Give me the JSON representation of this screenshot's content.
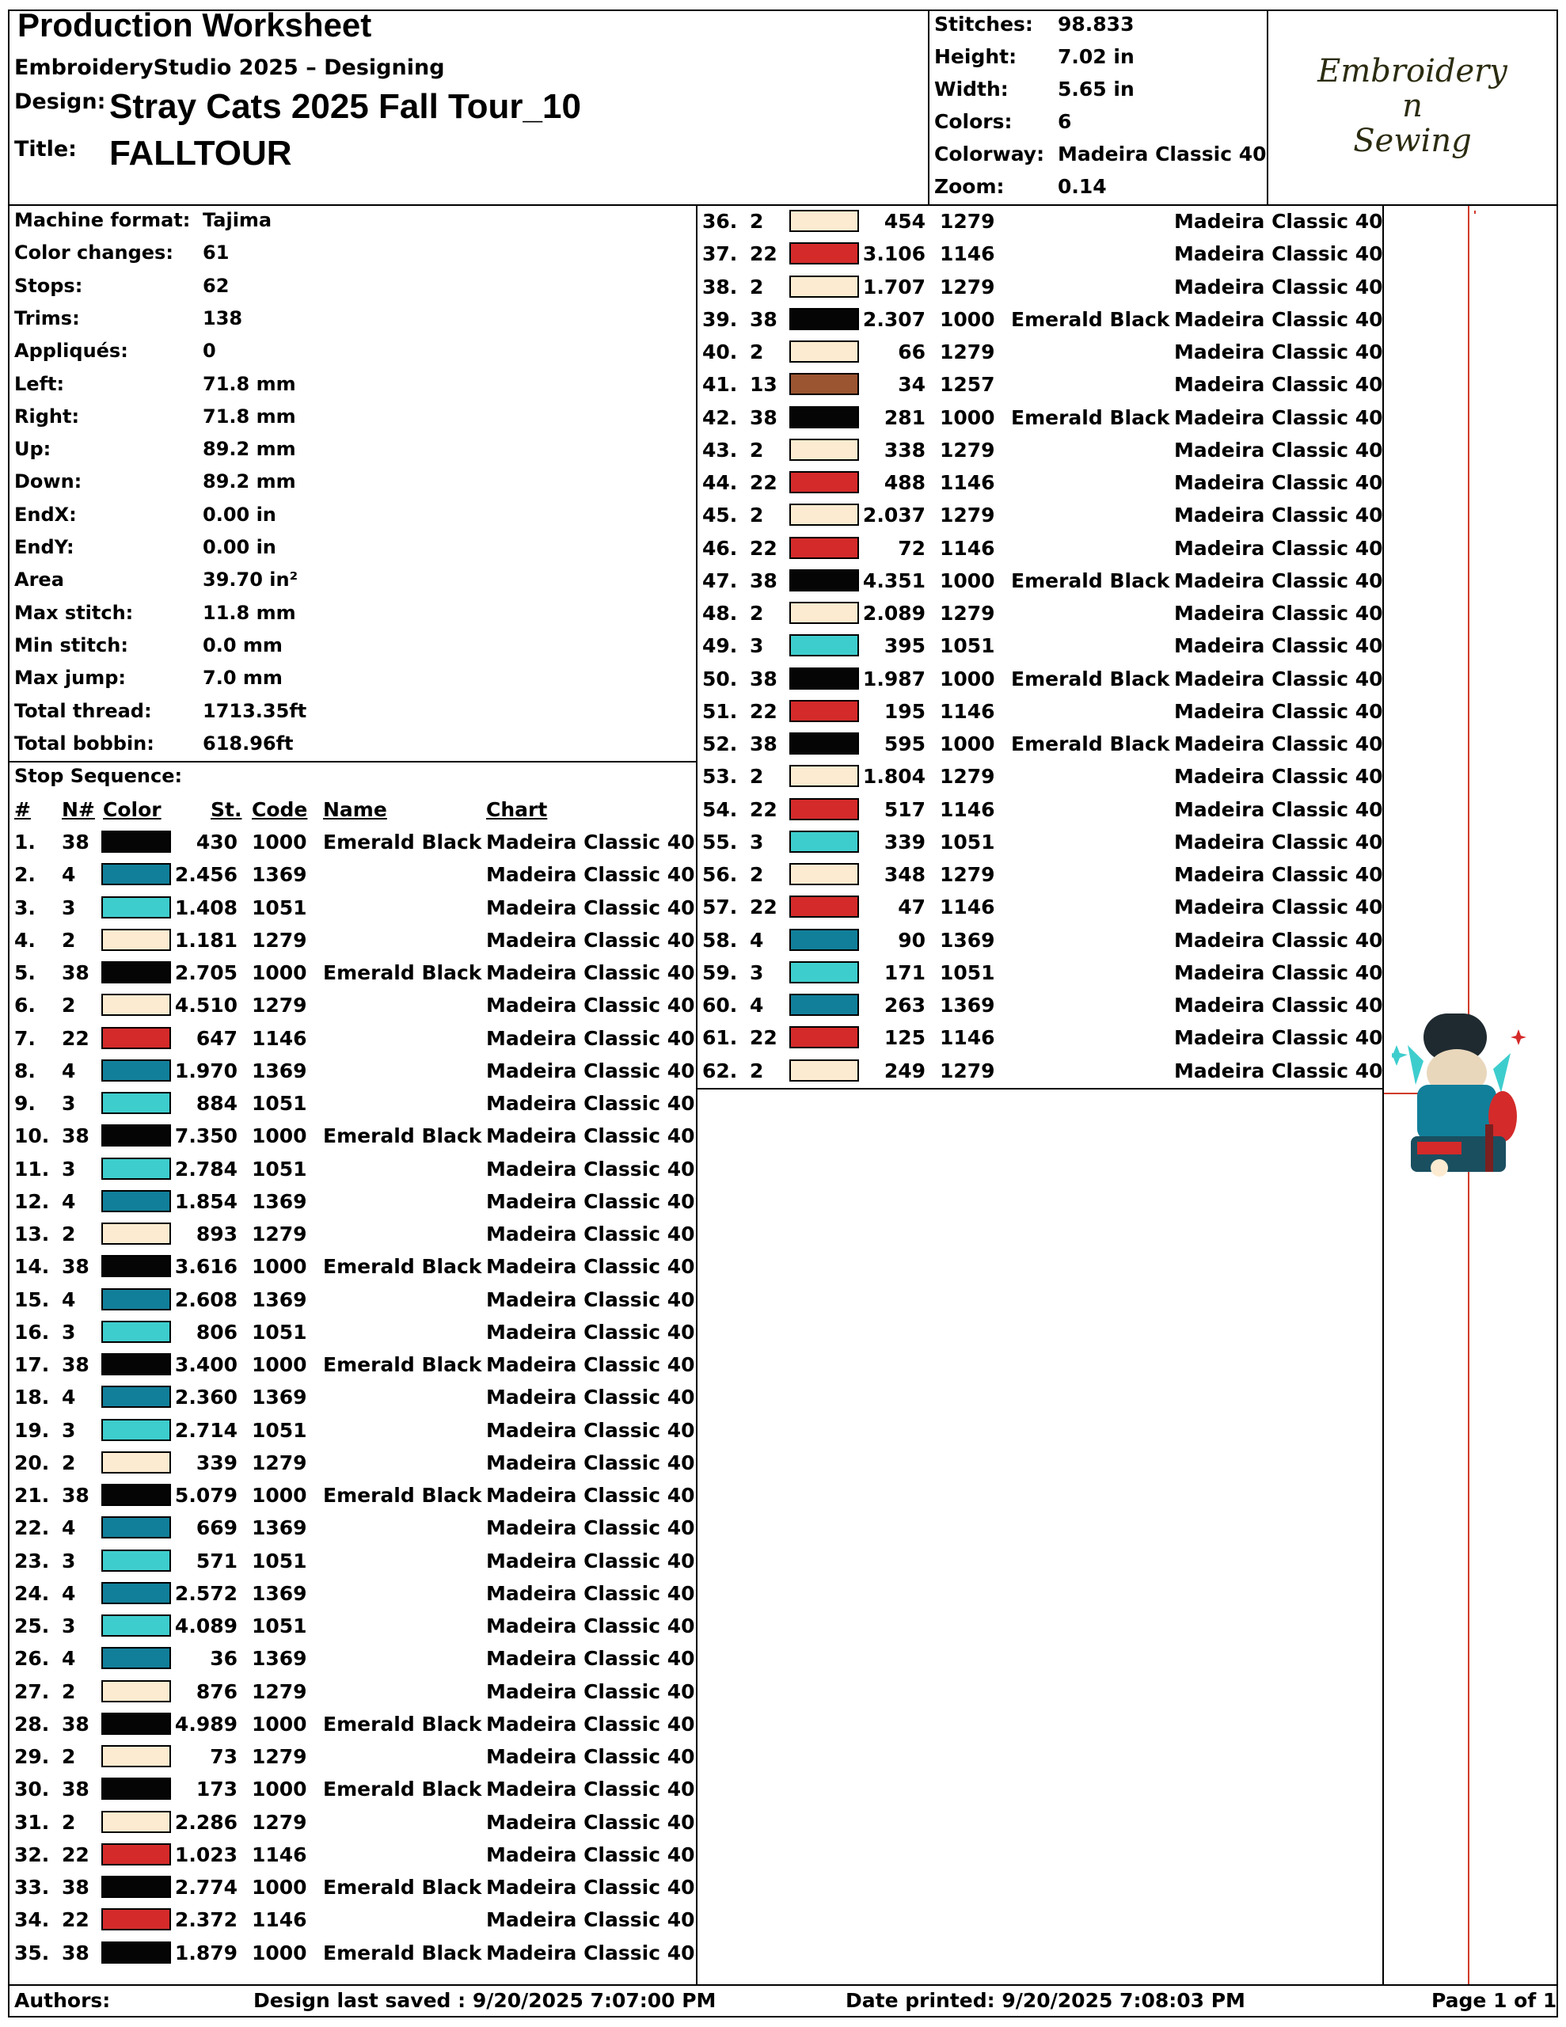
{
  "header": {
    "title": "Production Worksheet",
    "app": "EmbroideryStudio 2025 – Designing",
    "design_label": "Design:",
    "design": "Stray Cats 2025 Fall Tour_10",
    "title_label": "Title:",
    "design_title": "FALLTOUR"
  },
  "summary": [
    {
      "label": "Stitches:",
      "value": "98.833"
    },
    {
      "label": "Height:",
      "value": "7.02 in"
    },
    {
      "label": "Width:",
      "value": "5.65 in"
    },
    {
      "label": "Colors:",
      "value": "6"
    },
    {
      "label": "Colorway:",
      "value": "Madeira Classic 40"
    },
    {
      "label": "Zoom:",
      "value": "0.14"
    }
  ],
  "logo": {
    "line1": "Embroidery",
    "line2": "n",
    "line3": "Sewing"
  },
  "specs": [
    {
      "label": "Machine format:",
      "value": "Tajima"
    },
    {
      "label": "Color changes:",
      "value": "61"
    },
    {
      "label": "Stops:",
      "value": "62"
    },
    {
      "label": "Trims:",
      "value": "138"
    },
    {
      "label": "Appliqués:",
      "value": "0"
    },
    {
      "label": "Left:",
      "value": "71.8 mm"
    },
    {
      "label": "Right:",
      "value": "71.8 mm"
    },
    {
      "label": "Up:",
      "value": "89.2 mm"
    },
    {
      "label": "Down:",
      "value": "89.2 mm"
    },
    {
      "label": "EndX:",
      "value": "0.00 in"
    },
    {
      "label": "EndY:",
      "value": "0.00 in"
    },
    {
      "label": "Area",
      "value": " 39.70 in²"
    },
    {
      "label": "Max stitch:",
      "value": "11.8 mm"
    },
    {
      "label": "Min stitch:",
      "value": "0.0 mm"
    },
    {
      "label": "Max jump:",
      "value": "7.0 mm"
    },
    {
      "label": "Total thread:",
      "value": "1713.35ft"
    },
    {
      "label": "Total bobbin:",
      "value": "618.96ft"
    }
  ],
  "stop_sequence": {
    "title": "Stop Sequence:",
    "headers": {
      "idx": "#",
      "n": "N#",
      "color": "Color",
      "st": "St.",
      "code": "Code",
      "name": "Name",
      "chart": "Chart"
    }
  },
  "colors": {
    "black": "#050505",
    "teal": "#117f9a",
    "cyan": "#3ecdcd",
    "cream": "#fcebd0",
    "red": "#d42a2a",
    "brown": "#9b5530",
    "rule": "#d23a2a"
  },
  "rows": [
    {
      "i": "1.",
      "n": "38",
      "c": "black",
      "st": "430",
      "code": "1000",
      "name": "Emerald Black",
      "chart": "Madeira Classic 40"
    },
    {
      "i": "2.",
      "n": "4",
      "c": "teal",
      "st": "2.456",
      "code": "1369",
      "name": "",
      "chart": "Madeira Classic 40"
    },
    {
      "i": "3.",
      "n": "3",
      "c": "cyan",
      "st": "1.408",
      "code": "1051",
      "name": "",
      "chart": "Madeira Classic 40"
    },
    {
      "i": "4.",
      "n": "2",
      "c": "cream",
      "st": "1.181",
      "code": "1279",
      "name": "",
      "chart": "Madeira Classic 40"
    },
    {
      "i": "5.",
      "n": "38",
      "c": "black",
      "st": "2.705",
      "code": "1000",
      "name": "Emerald Black",
      "chart": "Madeira Classic 40"
    },
    {
      "i": "6.",
      "n": "2",
      "c": "cream",
      "st": "4.510",
      "code": "1279",
      "name": "",
      "chart": "Madeira Classic 40"
    },
    {
      "i": "7.",
      "n": "22",
      "c": "red",
      "st": "647",
      "code": "1146",
      "name": "",
      "chart": "Madeira Classic 40"
    },
    {
      "i": "8.",
      "n": "4",
      "c": "teal",
      "st": "1.970",
      "code": "1369",
      "name": "",
      "chart": "Madeira Classic 40"
    },
    {
      "i": "9.",
      "n": "3",
      "c": "cyan",
      "st": "884",
      "code": "1051",
      "name": "",
      "chart": "Madeira Classic 40"
    },
    {
      "i": "10.",
      "n": "38",
      "c": "black",
      "st": "7.350",
      "code": "1000",
      "name": "Emerald Black",
      "chart": "Madeira Classic 40"
    },
    {
      "i": "11.",
      "n": "3",
      "c": "cyan",
      "st": "2.784",
      "code": "1051",
      "name": "",
      "chart": "Madeira Classic 40"
    },
    {
      "i": "12.",
      "n": "4",
      "c": "teal",
      "st": "1.854",
      "code": "1369",
      "name": "",
      "chart": "Madeira Classic 40"
    },
    {
      "i": "13.",
      "n": "2",
      "c": "cream",
      "st": "893",
      "code": "1279",
      "name": "",
      "chart": "Madeira Classic 40"
    },
    {
      "i": "14.",
      "n": "38",
      "c": "black",
      "st": "3.616",
      "code": "1000",
      "name": "Emerald Black",
      "chart": "Madeira Classic 40"
    },
    {
      "i": "15.",
      "n": "4",
      "c": "teal",
      "st": "2.608",
      "code": "1369",
      "name": "",
      "chart": "Madeira Classic 40"
    },
    {
      "i": "16.",
      "n": "3",
      "c": "cyan",
      "st": "806",
      "code": "1051",
      "name": "",
      "chart": "Madeira Classic 40"
    },
    {
      "i": "17.",
      "n": "38",
      "c": "black",
      "st": "3.400",
      "code": "1000",
      "name": "Emerald Black",
      "chart": "Madeira Classic 40"
    },
    {
      "i": "18.",
      "n": "4",
      "c": "teal",
      "st": "2.360",
      "code": "1369",
      "name": "",
      "chart": "Madeira Classic 40"
    },
    {
      "i": "19.",
      "n": "3",
      "c": "cyan",
      "st": "2.714",
      "code": "1051",
      "name": "",
      "chart": "Madeira Classic 40"
    },
    {
      "i": "20.",
      "n": "2",
      "c": "cream",
      "st": "339",
      "code": "1279",
      "name": "",
      "chart": "Madeira Classic 40"
    },
    {
      "i": "21.",
      "n": "38",
      "c": "black",
      "st": "5.079",
      "code": "1000",
      "name": "Emerald Black",
      "chart": "Madeira Classic 40"
    },
    {
      "i": "22.",
      "n": "4",
      "c": "teal",
      "st": "669",
      "code": "1369",
      "name": "",
      "chart": "Madeira Classic 40"
    },
    {
      "i": "23.",
      "n": "3",
      "c": "cyan",
      "st": "571",
      "code": "1051",
      "name": "",
      "chart": "Madeira Classic 40"
    },
    {
      "i": "24.",
      "n": "4",
      "c": "teal",
      "st": "2.572",
      "code": "1369",
      "name": "",
      "chart": "Madeira Classic 40"
    },
    {
      "i": "25.",
      "n": "3",
      "c": "cyan",
      "st": "4.089",
      "code": "1051",
      "name": "",
      "chart": "Madeira Classic 40"
    },
    {
      "i": "26.",
      "n": "4",
      "c": "teal",
      "st": "36",
      "code": "1369",
      "name": "",
      "chart": "Madeira Classic 40"
    },
    {
      "i": "27.",
      "n": "2",
      "c": "cream",
      "st": "876",
      "code": "1279",
      "name": "",
      "chart": "Madeira Classic 40"
    },
    {
      "i": "28.",
      "n": "38",
      "c": "black",
      "st": "4.989",
      "code": "1000",
      "name": "Emerald Black",
      "chart": "Madeira Classic 40"
    },
    {
      "i": "29.",
      "n": "2",
      "c": "cream",
      "st": "73",
      "code": "1279",
      "name": "",
      "chart": "Madeira Classic 40"
    },
    {
      "i": "30.",
      "n": "38",
      "c": "black",
      "st": "173",
      "code": "1000",
      "name": "Emerald Black",
      "chart": "Madeira Classic 40"
    },
    {
      "i": "31.",
      "n": "2",
      "c": "cream",
      "st": "2.286",
      "code": "1279",
      "name": "",
      "chart": "Madeira Classic 40"
    },
    {
      "i": "32.",
      "n": "22",
      "c": "red",
      "st": "1.023",
      "code": "1146",
      "name": "",
      "chart": "Madeira Classic 40"
    },
    {
      "i": "33.",
      "n": "38",
      "c": "black",
      "st": "2.774",
      "code": "1000",
      "name": "Emerald Black",
      "chart": "Madeira Classic 40"
    },
    {
      "i": "34.",
      "n": "22",
      "c": "red",
      "st": "2.372",
      "code": "1146",
      "name": "",
      "chart": "Madeira Classic 40"
    },
    {
      "i": "35.",
      "n": "38",
      "c": "black",
      "st": "1.879",
      "code": "1000",
      "name": "Emerald Black",
      "chart": "Madeira Classic 40"
    },
    {
      "i": "36.",
      "n": "2",
      "c": "cream",
      "st": "454",
      "code": "1279",
      "name": "",
      "chart": "Madeira Classic 40"
    },
    {
      "i": "37.",
      "n": "22",
      "c": "red",
      "st": "3.106",
      "code": "1146",
      "name": "",
      "chart": "Madeira Classic 40"
    },
    {
      "i": "38.",
      "n": "2",
      "c": "cream",
      "st": "1.707",
      "code": "1279",
      "name": "",
      "chart": "Madeira Classic 40"
    },
    {
      "i": "39.",
      "n": "38",
      "c": "black",
      "st": "2.307",
      "code": "1000",
      "name": "Emerald Black",
      "chart": "Madeira Classic 40"
    },
    {
      "i": "40.",
      "n": "2",
      "c": "cream",
      "st": "66",
      "code": "1279",
      "name": "",
      "chart": "Madeira Classic 40"
    },
    {
      "i": "41.",
      "n": "13",
      "c": "brown",
      "st": "34",
      "code": "1257",
      "name": "",
      "chart": "Madeira Classic 40"
    },
    {
      "i": "42.",
      "n": "38",
      "c": "black",
      "st": "281",
      "code": "1000",
      "name": "Emerald Black",
      "chart": "Madeira Classic 40"
    },
    {
      "i": "43.",
      "n": "2",
      "c": "cream",
      "st": "338",
      "code": "1279",
      "name": "",
      "chart": "Madeira Classic 40"
    },
    {
      "i": "44.",
      "n": "22",
      "c": "red",
      "st": "488",
      "code": "1146",
      "name": "",
      "chart": "Madeira Classic 40"
    },
    {
      "i": "45.",
      "n": "2",
      "c": "cream",
      "st": "2.037",
      "code": "1279",
      "name": "",
      "chart": "Madeira Classic 40"
    },
    {
      "i": "46.",
      "n": "22",
      "c": "red",
      "st": "72",
      "code": "1146",
      "name": "",
      "chart": "Madeira Classic 40"
    },
    {
      "i": "47.",
      "n": "38",
      "c": "black",
      "st": "4.351",
      "code": "1000",
      "name": "Emerald Black",
      "chart": "Madeira Classic 40"
    },
    {
      "i": "48.",
      "n": "2",
      "c": "cream",
      "st": "2.089",
      "code": "1279",
      "name": "",
      "chart": "Madeira Classic 40"
    },
    {
      "i": "49.",
      "n": "3",
      "c": "cyan",
      "st": "395",
      "code": "1051",
      "name": "",
      "chart": "Madeira Classic 40"
    },
    {
      "i": "50.",
      "n": "38",
      "c": "black",
      "st": "1.987",
      "code": "1000",
      "name": "Emerald Black",
      "chart": "Madeira Classic 40"
    },
    {
      "i": "51.",
      "n": "22",
      "c": "red",
      "st": "195",
      "code": "1146",
      "name": "",
      "chart": "Madeira Classic 40"
    },
    {
      "i": "52.",
      "n": "38",
      "c": "black",
      "st": "595",
      "code": "1000",
      "name": "Emerald Black",
      "chart": "Madeira Classic 40"
    },
    {
      "i": "53.",
      "n": "2",
      "c": "cream",
      "st": "1.804",
      "code": "1279",
      "name": "",
      "chart": "Madeira Classic 40"
    },
    {
      "i": "54.",
      "n": "22",
      "c": "red",
      "st": "517",
      "code": "1146",
      "name": "",
      "chart": "Madeira Classic 40"
    },
    {
      "i": "55.",
      "n": "3",
      "c": "cyan",
      "st": "339",
      "code": "1051",
      "name": "",
      "chart": "Madeira Classic 40"
    },
    {
      "i": "56.",
      "n": "2",
      "c": "cream",
      "st": "348",
      "code": "1279",
      "name": "",
      "chart": "Madeira Classic 40"
    },
    {
      "i": "57.",
      "n": "22",
      "c": "red",
      "st": "47",
      "code": "1146",
      "name": "",
      "chart": "Madeira Classic 40"
    },
    {
      "i": "58.",
      "n": "4",
      "c": "teal",
      "st": "90",
      "code": "1369",
      "name": "",
      "chart": "Madeira Classic 40"
    },
    {
      "i": "59.",
      "n": "3",
      "c": "cyan",
      "st": "171",
      "code": "1051",
      "name": "",
      "chart": "Madeira Classic 40"
    },
    {
      "i": "60.",
      "n": "4",
      "c": "teal",
      "st": "263",
      "code": "1369",
      "name": "",
      "chart": "Madeira Classic 40"
    },
    {
      "i": "61.",
      "n": "22",
      "c": "red",
      "st": "125",
      "code": "1146",
      "name": "",
      "chart": "Madeira Classic 40"
    },
    {
      "i": "62.",
      "n": "2",
      "c": "cream",
      "st": "249",
      "code": "1279",
      "name": "",
      "chart": "Madeira Classic 40"
    }
  ],
  "footer": {
    "authors": "Authors:",
    "saved": "Design last saved : 9/20/2025 7:07:00 PM",
    "printed": "Date printed: 9/20/2025 7:08:03 PM",
    "page": "Page 1 of 1"
  }
}
